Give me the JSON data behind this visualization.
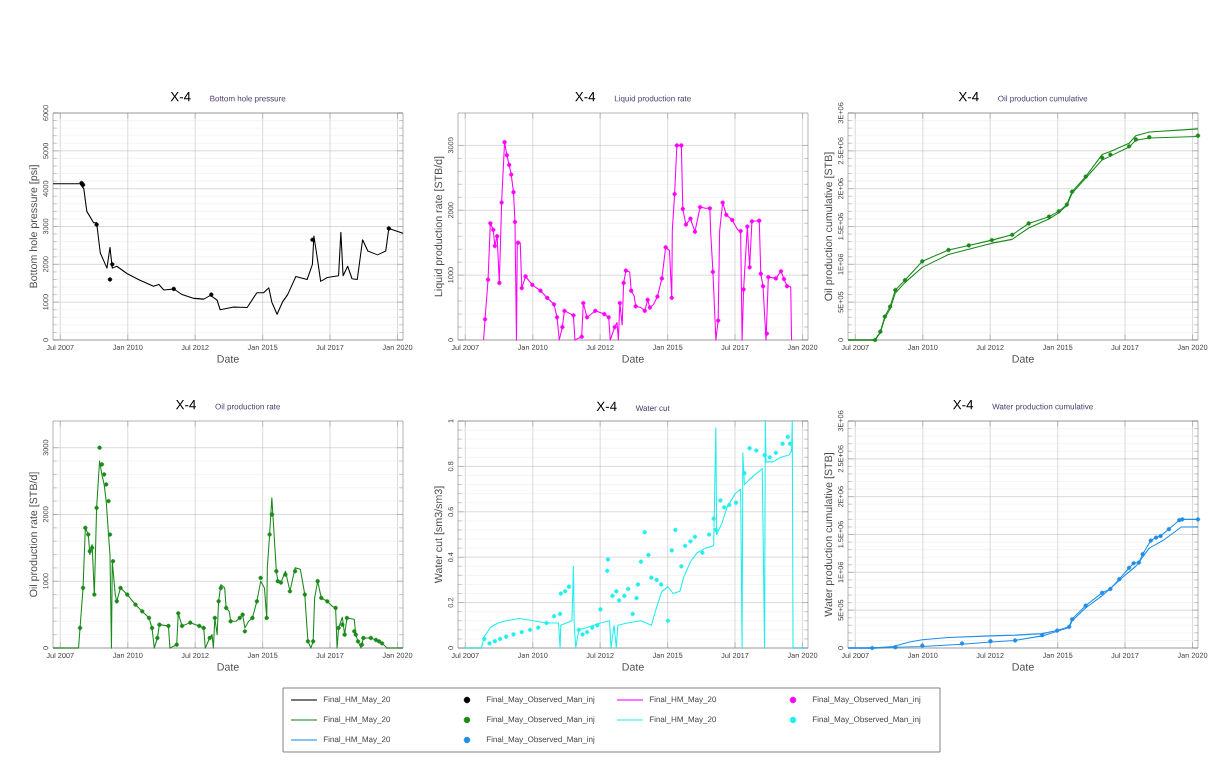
{
  "chart_data": [
    {
      "type": "line",
      "title": "X-4",
      "subtitle": "Bottom hole pressure",
      "xlabel": "Date",
      "ylabel": "Bottom hole pressure [psi]",
      "xlim": [
        "2007-03-25",
        "2020-03-15"
      ],
      "xticks": [
        {
          "value": "2007-07-01",
          "label": "Jul 2007"
        },
        {
          "value": "2010-01-01",
          "label": "Jan 2010"
        },
        {
          "value": "2012-07-01",
          "label": "Jul 2012"
        },
        {
          "value": "2015-01-01",
          "label": "Jan 2015"
        },
        {
          "value": "2017-07-01",
          "label": "Jul 2017"
        },
        {
          "value": "2020-01-01",
          "label": "Jan 2020"
        }
      ],
      "ylim": [
        0,
        6000
      ],
      "yticks": [
        0,
        1000,
        2000,
        3000,
        4000,
        5000,
        6000
      ],
      "grid": true,
      "legend": "bottom",
      "series": [
        {
          "name": "Final_HM_May_20",
          "type": "line",
          "color": "#000000",
          "x": [
            "2007-03-25",
            "2008-03-25",
            "2008-05-15",
            "2008-06-25",
            "2008-09-25",
            "2008-11-05",
            "2008-12-25",
            "2009-03-25",
            "2009-05-05",
            "2009-06-05",
            "2009-08-05",
            "2009-12-25",
            "2010-06-15",
            "2010-12-15",
            "2011-02-25",
            "2011-05-05",
            "2011-09-15",
            "2012-01-05",
            "2012-06-15",
            "2012-10-25",
            "2013-01-25",
            "2013-04-25",
            "2013-06-05",
            "2013-12-05",
            "2014-06-05",
            "2014-10-15",
            "2015-01-15",
            "2015-03-25",
            "2015-05-05",
            "2015-07-15",
            "2015-09-25",
            "2015-12-05",
            "2016-03-25",
            "2016-08-25",
            "2016-11-05",
            "2016-11-25",
            "2017-01-15",
            "2017-02-25",
            "2017-05-25",
            "2017-10-25",
            "2017-11-25",
            "2017-12-25",
            "2018-02-25",
            "2018-04-25",
            "2018-07-05",
            "2018-09-15",
            "2018-11-25",
            "2019-04-05",
            "2019-07-25",
            "2019-09-05",
            "2020-03-15"
          ],
          "values": [
            4130,
            4130,
            4000,
            3400,
            3100,
            3100,
            2300,
            1900,
            2450,
            1900,
            1950,
            1750,
            1580,
            1420,
            1470,
            1320,
            1350,
            1200,
            1100,
            1080,
            1180,
            1050,
            800,
            870,
            860,
            1250,
            1250,
            1380,
            1000,
            680,
            1000,
            1200,
            1680,
            1600,
            2000,
            2750,
            2100,
            1550,
            1650,
            1700,
            2850,
            1700,
            1950,
            1620,
            1600,
            2650,
            2350,
            2250,
            2350,
            2950,
            2820
          ]
        },
        {
          "name": "Final_May_Observed_Man_inj",
          "type": "scatter",
          "marker": "circle",
          "color": "#000000",
          "x": [
            "2008-04-15",
            "2008-05-05",
            "2008-11-05",
            "2009-05-05",
            "2009-06-05",
            "2011-09-15",
            "2013-02-05",
            "2016-11-05",
            "2019-09-05"
          ],
          "values": [
            4150,
            4100,
            3050,
            1600,
            2000,
            1350,
            1200,
            2650,
            2950
          ]
        }
      ]
    },
    {
      "type": "line",
      "title": "X-4",
      "subtitle": "Liquid production rate",
      "xlabel": "Date",
      "ylabel": "Liquid production rate [STB/d]",
      "xlim": [
        "2007-03-25",
        "2020-03-15"
      ],
      "xticks": [
        {
          "value": "2007-07-01",
          "label": "Jul 2007"
        },
        {
          "value": "2010-01-01",
          "label": "Jan 2010"
        },
        {
          "value": "2012-07-01",
          "label": "Jul 2012"
        },
        {
          "value": "2015-01-01",
          "label": "Jan 2015"
        },
        {
          "value": "2017-07-01",
          "label": "Jul 2017"
        },
        {
          "value": "2020-01-01",
          "label": "Jan 2020"
        }
      ],
      "ylim": [
        0,
        3500
      ],
      "yticks": [
        0,
        1000,
        2000,
        3000
      ],
      "grid": true,
      "legend": "bottom",
      "series": [
        {
          "name": "Final_HM_May_20",
          "type": "line",
          "color": "#ff00ff",
          "x": [
            "2008-03-05",
            "2008-03-25",
            "2008-05-05",
            "2008-06-05",
            "2008-07-15",
            "2008-08-05",
            "2008-09-05",
            "2008-10-05",
            "2008-11-05",
            "2008-12-15",
            "2009-01-15",
            "2009-02-15",
            "2009-03-15",
            "2009-04-15",
            "2009-05-05",
            "2009-05-25",
            "2009-06-05",
            "2009-07-15",
            "2009-08-05",
            "2009-09-25",
            "2009-12-25",
            "2010-04-15",
            "2010-07-15",
            "2010-10-15",
            "2010-11-25",
            "2010-12-25",
            "2011-02-05",
            "2011-03-05",
            "2011-07-05",
            "2011-07-25",
            "2011-10-25",
            "2011-11-15",
            "2012-01-05",
            "2012-04-25",
            "2012-08-25",
            "2012-10-25",
            "2012-11-15",
            "2013-01-15",
            "2013-02-15",
            "2013-03-05",
            "2013-03-25",
            "2013-04-25",
            "2013-05-15",
            "2013-06-15",
            "2013-08-05",
            "2013-08-25",
            "2013-10-05",
            "2013-10-25",
            "2014-01-05",
            "2014-02-25",
            "2014-04-05",
            "2014-05-05",
            "2014-06-25",
            "2014-08-15",
            "2014-10-15",
            "2014-12-05",
            "2015-01-25",
            "2015-02-25",
            "2015-03-05",
            "2015-04-05",
            "2015-05-05",
            "2015-07-05",
            "2015-07-25",
            "2015-09-05",
            "2015-11-05",
            "2016-01-05",
            "2016-03-15",
            "2016-05-25",
            "2016-07-25",
            "2016-08-05",
            "2016-09-05",
            "2016-10-15",
            "2016-11-15",
            "2016-12-05",
            "2017-01-15",
            "2017-03-05",
            "2017-05-25",
            "2017-08-05",
            "2017-09-15",
            "2017-10-05",
            "2017-10-25",
            "2017-12-15",
            "2018-01-15",
            "2018-02-15",
            "2018-05-25",
            "2018-06-15",
            "2018-07-15",
            "2018-08-25",
            "2018-09-25",
            "2019-01-05",
            "2019-03-15",
            "2019-04-25",
            "2019-06-05",
            "2019-07-25",
            "2019-08-05"
          ],
          "values": [
            0,
            320,
            930,
            1800,
            1700,
            1450,
            1600,
            880,
            2120,
            3050,
            2850,
            2700,
            2550,
            2280,
            1820,
            0,
            1500,
            1500,
            800,
            980,
            850,
            760,
            650,
            550,
            350,
            0,
            200,
            450,
            380,
            0,
            50,
            570,
            350,
            450,
            400,
            350,
            0,
            200,
            270,
            0,
            570,
            230,
            880,
            1070,
            1050,
            760,
            680,
            520,
            500,
            450,
            620,
            500,
            550,
            670,
            950,
            1430,
            1380,
            650,
            1700,
            2250,
            3000,
            3000,
            2020,
            1780,
            1870,
            1670,
            2050,
            2030,
            2030,
            1670,
            1050,
            0,
            300,
            1680,
            2120,
            1930,
            1850,
            1700,
            1680,
            0,
            780,
            1750,
            1120,
            1830,
            1840,
            1020,
            830,
            0,
            970,
            950,
            1060,
            940,
            830,
            820,
            0
          ]
        },
        {
          "name": "Final_May_Observed_Man_inj",
          "type": "scatter",
          "marker": "circle",
          "color": "#ff00ff",
          "x": [
            "2008-03-25",
            "2008-05-05",
            "2008-06-05",
            "2008-07-15",
            "2008-08-05",
            "2008-09-05",
            "2008-10-05",
            "2008-11-05",
            "2008-12-15",
            "2009-01-15",
            "2009-02-15",
            "2009-03-15",
            "2009-04-15",
            "2009-05-05",
            "2009-06-15",
            "2009-08-05",
            "2009-09-25",
            "2009-12-25",
            "2010-04-15",
            "2010-07-15",
            "2010-10-15",
            "2010-11-25",
            "2011-02-05",
            "2011-03-05",
            "2011-07-05",
            "2011-10-25",
            "2011-11-15",
            "2012-01-05",
            "2012-04-25",
            "2012-08-25",
            "2012-10-25",
            "2013-01-15",
            "2013-03-25",
            "2013-05-15",
            "2013-06-15",
            "2013-08-25",
            "2013-10-25",
            "2014-02-25",
            "2014-04-05",
            "2014-05-05",
            "2014-08-15",
            "2014-10-15",
            "2014-12-05",
            "2015-02-25",
            "2015-04-05",
            "2015-05-05",
            "2015-07-05",
            "2015-07-25",
            "2015-09-05",
            "2015-11-05",
            "2016-01-05",
            "2016-03-15",
            "2016-07-25",
            "2016-09-05",
            "2016-11-15",
            "2017-01-15",
            "2017-03-05",
            "2017-05-25",
            "2017-09-15",
            "2017-10-25",
            "2017-12-15",
            "2018-01-15",
            "2018-02-15",
            "2018-05-25",
            "2018-06-15",
            "2018-07-15",
            "2018-09-05",
            "2018-09-25",
            "2019-01-05",
            "2019-03-15",
            "2019-04-25",
            "2019-06-05"
          ],
          "values": [
            320,
            930,
            1800,
            1700,
            1450,
            1600,
            880,
            2120,
            3050,
            2850,
            2700,
            2550,
            2280,
            1820,
            1500,
            800,
            980,
            850,
            760,
            650,
            550,
            350,
            200,
            450,
            380,
            50,
            570,
            350,
            450,
            400,
            350,
            200,
            570,
            880,
            1070,
            760,
            520,
            450,
            620,
            500,
            670,
            950,
            1430,
            650,
            2250,
            3000,
            3000,
            2020,
            1780,
            1870,
            1670,
            2050,
            2030,
            1050,
            300,
            2120,
            1930,
            1850,
            1680,
            780,
            1750,
            1120,
            1830,
            1840,
            1020,
            830,
            100,
            970,
            950,
            1060,
            940,
            830
          ]
        }
      ]
    },
    {
      "type": "line",
      "title": "X-4",
      "subtitle": "Oil production cumulative",
      "xlabel": "Date",
      "ylabel": "Oil production cumulative [STB]",
      "xlim": [
        "2007-03-25",
        "2020-03-15"
      ],
      "xticks": [
        {
          "value": "2007-07-01",
          "label": "Jul 2007"
        },
        {
          "value": "2010-01-01",
          "label": "Jan 2010"
        },
        {
          "value": "2012-07-01",
          "label": "Jul 2012"
        },
        {
          "value": "2015-01-01",
          "label": "Jan 2015"
        },
        {
          "value": "2017-07-01",
          "label": "Jul 2017"
        },
        {
          "value": "2020-01-01",
          "label": "Jan 2020"
        }
      ],
      "ylim": [
        0,
        3000000
      ],
      "yticks": [
        0,
        {
          "value": 500000,
          "label": "5E+05"
        },
        {
          "value": 1000000,
          "label": "1E+06"
        },
        {
          "value": 1500000,
          "label": "1.5E+06"
        },
        {
          "value": 2000000,
          "label": "2E+06"
        },
        {
          "value": 2500000,
          "label": "2.5E+06"
        },
        {
          "value": 3000000,
          "label": "3E+06"
        }
      ],
      "grid": true,
      "legend": "bottom",
      "series": [
        {
          "name": "Final_HM_May_20",
          "type": "line",
          "color": "#1a8a1a",
          "x": [
            "2007-03-25",
            "2008-03-25",
            "2008-06-05",
            "2008-08-05",
            "2008-10-15",
            "2008-12-25",
            "2009-05-05",
            "2009-12-25",
            "2010-12-15",
            "2011-09-15",
            "2012-07-25",
            "2013-04-25",
            "2013-12-05",
            "2014-09-05",
            "2015-01-15",
            "2015-05-05",
            "2015-07-15",
            "2016-01-15",
            "2016-08-25",
            "2016-12-15",
            "2017-08-25",
            "2017-11-25",
            "2018-05-25",
            "2020-03-15"
          ],
          "values": [
            0,
            0,
            110000,
            310000,
            440000,
            660000,
            790000,
            1040000,
            1190000,
            1250000,
            1320000,
            1390000,
            1540000,
            1630000,
            1700000,
            1790000,
            1960000,
            2160000,
            2450000,
            2490000,
            2600000,
            2700000,
            2750000,
            2790000
          ]
        },
        {
          "type": "line",
          "color": "#1a8a1a",
          "x": [
            "2007-03-25",
            "2008-03-25",
            "2008-06-05",
            "2008-08-05",
            "2008-10-15",
            "2008-12-25",
            "2009-05-05",
            "2009-12-25",
            "2010-12-15",
            "2011-09-15",
            "2012-07-25",
            "2013-04-25",
            "2013-12-05",
            "2014-09-05",
            "2015-01-15",
            "2015-05-05",
            "2015-07-15",
            "2016-01-15",
            "2016-08-25",
            "2016-12-15",
            "2017-08-25",
            "2017-11-25",
            "2018-05-25",
            "2020-03-15"
          ],
          "values": [
            0,
            0,
            100000,
            290000,
            410000,
            620000,
            760000,
            960000,
            1130000,
            1200000,
            1280000,
            1330000,
            1480000,
            1600000,
            1680000,
            1780000,
            1940000,
            2140000,
            2380000,
            2430000,
            2550000,
            2640000,
            2670000,
            2690000
          ]
        },
        {
          "name": "Final_May_Observed_Man_inj",
          "type": "scatter",
          "marker": "circle",
          "color": "#1a8a1a",
          "x": [
            "2008-03-25",
            "2008-06-05",
            "2008-08-05",
            "2008-10-15",
            "2008-12-25",
            "2009-05-05",
            "2009-12-25",
            "2010-12-15",
            "2011-09-15",
            "2012-07-25",
            "2013-04-25",
            "2013-12-05",
            "2014-09-05",
            "2015-01-15",
            "2015-05-05",
            "2015-07-15",
            "2016-01-15",
            "2016-08-25",
            "2016-12-15",
            "2017-08-25",
            "2017-11-25",
            "2018-05-25",
            "2020-03-15"
          ],
          "values": [
            0,
            110000,
            310000,
            440000,
            660000,
            790000,
            1040000,
            1190000,
            1250000,
            1320000,
            1390000,
            1540000,
            1630000,
            1700000,
            1790000,
            1960000,
            2160000,
            2410000,
            2450000,
            2560000,
            2650000,
            2680000,
            2700000
          ]
        }
      ]
    },
    {
      "type": "line",
      "title": "X-4",
      "subtitle": "Oil production rate",
      "xlabel": "Date",
      "ylabel": "Oil production rate [STB/d]",
      "xlim": [
        "2007-03-25",
        "2020-03-15"
      ],
      "xticks": [
        {
          "value": "2007-07-01",
          "label": "Jul 2007"
        },
        {
          "value": "2010-01-01",
          "label": "Jan 2010"
        },
        {
          "value": "2012-07-01",
          "label": "Jul 2012"
        },
        {
          "value": "2015-01-01",
          "label": "Jan 2015"
        },
        {
          "value": "2017-07-01",
          "label": "Jul 2017"
        },
        {
          "value": "2020-01-01",
          "label": "Jan 2020"
        }
      ],
      "ylim": [
        0,
        3400
      ],
      "yticks": [
        0,
        1000,
        2000,
        3000
      ],
      "grid": true,
      "series": [
        {
          "type": "line",
          "color": "#1a8a1a",
          "x": [
            "2007-03-25",
            "2008-03-05",
            "2008-03-25",
            "2008-05-05",
            "2008-06-05",
            "2008-07-15",
            "2008-08-05",
            "2008-09-05",
            "2008-10-05",
            "2008-11-05",
            "2008-12-15",
            "2009-01-15",
            "2009-02-15",
            "2009-03-15",
            "2009-04-15",
            "2009-05-05",
            "2009-05-25",
            "2009-06-05",
            "2009-07-15",
            "2009-08-05",
            "2009-09-25",
            "2009-12-25",
            "2010-04-15",
            "2010-07-15",
            "2010-10-15",
            "2010-11-25",
            "2010-12-25",
            "2011-02-05",
            "2011-03-05",
            "2011-07-05",
            "2011-07-25",
            "2011-10-25",
            "2011-11-15",
            "2012-01-05",
            "2012-04-25",
            "2012-08-25",
            "2012-10-25",
            "2012-11-15",
            "2013-01-15",
            "2013-02-15",
            "2013-03-05",
            "2013-03-25",
            "2013-04-25",
            "2013-05-15",
            "2013-06-15",
            "2013-08-05",
            "2013-08-25",
            "2013-10-05",
            "2013-10-25",
            "2014-01-05",
            "2014-02-25",
            "2014-04-05",
            "2014-05-05",
            "2014-06-25",
            "2014-08-15",
            "2014-10-15",
            "2014-12-05",
            "2015-01-25",
            "2015-02-25",
            "2015-03-05",
            "2015-04-05",
            "2015-05-05",
            "2015-07-05",
            "2015-07-25",
            "2015-09-05",
            "2015-11-05",
            "2016-01-05",
            "2016-03-15",
            "2016-05-25",
            "2016-07-25",
            "2016-08-05",
            "2016-09-05",
            "2016-10-15",
            "2016-11-15",
            "2016-12-05",
            "2017-01-15",
            "2017-03-05",
            "2017-05-25",
            "2017-08-05",
            "2017-09-15",
            "2017-10-05",
            "2017-10-25",
            "2017-12-15",
            "2018-01-15",
            "2018-02-15",
            "2018-05-25",
            "2018-06-15",
            "2018-07-15",
            "2018-08-25",
            "2018-09-25",
            "2019-01-05",
            "2019-03-15",
            "2019-04-25",
            "2019-06-05",
            "2019-07-25",
            "2019-08-05",
            "2020-03-15"
          ],
          "values": [
            0,
            0,
            300,
            900,
            1800,
            1700,
            1400,
            1550,
            800,
            2100,
            2800,
            2600,
            2450,
            2200,
            1700,
            1400,
            0,
            1300,
            800,
            700,
            900,
            800,
            650,
            550,
            450,
            300,
            0,
            150,
            350,
            330,
            0,
            50,
            520,
            330,
            380,
            330,
            300,
            0,
            150,
            200,
            0,
            450,
            200,
            700,
            950,
            900,
            600,
            550,
            400,
            400,
            450,
            500,
            300,
            400,
            450,
            700,
            1000,
            900,
            450,
            1200,
            1700,
            2250,
            1150,
            1000,
            980,
            1150,
            850,
            1200,
            1180,
            800,
            600,
            100,
            0,
            100,
            750,
            1000,
            750,
            700,
            620,
            600,
            0,
            300,
            460,
            200,
            450,
            430,
            200,
            100,
            0,
            150,
            150,
            120,
            100,
            70,
            20,
            0,
            0
          ]
        },
        {
          "type": "scatter",
          "marker": "circle",
          "color": "#1a8a1a",
          "x": [
            "2008-03-25",
            "2008-05-05",
            "2008-06-05",
            "2008-07-15",
            "2008-08-05",
            "2008-09-05",
            "2008-10-05",
            "2008-11-05",
            "2008-12-15",
            "2009-01-15",
            "2009-02-15",
            "2009-03-15",
            "2009-04-15",
            "2009-05-05",
            "2009-06-15",
            "2009-08-05",
            "2009-09-25",
            "2009-12-25",
            "2010-04-15",
            "2010-07-15",
            "2010-10-15",
            "2010-11-25",
            "2011-02-05",
            "2011-03-05",
            "2011-07-05",
            "2011-10-25",
            "2011-11-15",
            "2012-01-05",
            "2012-04-25",
            "2012-08-25",
            "2012-10-25",
            "2013-01-15",
            "2013-03-25",
            "2013-05-15",
            "2013-06-15",
            "2013-08-25",
            "2013-10-25",
            "2014-02-25",
            "2014-04-05",
            "2014-05-05",
            "2014-08-15",
            "2014-10-15",
            "2014-12-05",
            "2015-02-25",
            "2015-04-05",
            "2015-05-05",
            "2015-07-05",
            "2015-07-25",
            "2015-09-05",
            "2015-11-05",
            "2016-01-05",
            "2016-03-15",
            "2016-07-25",
            "2016-09-05",
            "2016-11-15",
            "2017-01-15",
            "2017-03-05",
            "2017-05-25",
            "2017-09-15",
            "2017-10-25",
            "2017-12-15",
            "2018-01-15",
            "2018-02-15",
            "2018-05-25",
            "2018-06-15",
            "2018-07-15",
            "2018-09-05",
            "2018-09-25",
            "2019-01-05",
            "2019-03-15",
            "2019-04-25",
            "2019-06-05"
          ],
          "values": [
            300,
            900,
            1800,
            1700,
            1450,
            1500,
            800,
            2100,
            3000,
            2750,
            2600,
            2450,
            2200,
            1700,
            1300,
            700,
            900,
            800,
            650,
            550,
            450,
            300,
            150,
            350,
            330,
            50,
            520,
            330,
            380,
            330,
            300,
            150,
            450,
            700,
            900,
            600,
            400,
            450,
            500,
            250,
            450,
            700,
            1050,
            450,
            1700,
            2000,
            1150,
            1000,
            980,
            1100,
            850,
            1150,
            800,
            100,
            100,
            1000,
            750,
            700,
            600,
            300,
            350,
            200,
            450,
            250,
            200,
            100,
            50,
            150,
            150,
            120,
            100,
            70
          ]
        }
      ]
    },
    {
      "type": "line",
      "title": "X-4",
      "subtitle": "Water cut",
      "xlabel": "Date",
      "ylabel": "Water cut [sm3/sm3]",
      "xlim": [
        "2007-03-25",
        "2020-03-15"
      ],
      "xticks": [
        {
          "value": "2007-07-01",
          "label": "Jul 2007"
        },
        {
          "value": "2010-01-01",
          "label": "Jan 2010"
        },
        {
          "value": "2012-07-01",
          "label": "Jul 2012"
        },
        {
          "value": "2015-01-01",
          "label": "Jan 2015"
        },
        {
          "value": "2017-07-01",
          "label": "Jul 2017"
        },
        {
          "value": "2020-01-01",
          "label": "Jan 2020"
        }
      ],
      "ylim": [
        0,
        1
      ],
      "yticks": [
        0,
        0.2,
        0.4,
        0.6,
        0.8,
        1
      ],
      "grid": true,
      "legend": "bottom",
      "series": [
        {
          "name": "Final_HM_May_20",
          "type": "line",
          "color": "#22eeee",
          "x": [
            "2007-06-15",
            "2008-02-05",
            "2008-03-15",
            "2008-06-05",
            "2008-09-15",
            "2009-01-05",
            "2009-07-05",
            "2010-01-05",
            "2010-07-05",
            "2010-12-15",
            "2011-01-05",
            "2011-01-15",
            "2011-06-15",
            "2011-07-05",
            "2011-07-15",
            "2011-08-05",
            "2011-09-15",
            "2012-01-05",
            "2012-07-05",
            "2012-11-05",
            "2012-11-25",
            "2013-01-05",
            "2013-02-05",
            "2013-02-25",
            "2013-07-05",
            "2014-01-05",
            "2014-05-25",
            "2014-08-05",
            "2014-10-15",
            "2015-01-05",
            "2015-03-15",
            "2015-06-15",
            "2015-08-05",
            "2015-11-05",
            "2016-02-05",
            "2016-05-25",
            "2016-09-15",
            "2016-10-15",
            "2016-10-25",
            "2017-01-05",
            "2017-03-15",
            "2017-07-05",
            "2017-09-15",
            "2017-10-05",
            "2017-10-15",
            "2017-11-05",
            "2018-01-05",
            "2018-03-15",
            "2018-07-05",
            "2018-08-05",
            "2018-08-15",
            "2018-08-25",
            "2018-11-25",
            "2019-03-15",
            "2019-07-05",
            "2019-08-05",
            "2019-08-15",
            "2019-08-25",
            "2020-02-01"
          ],
          "values": [
            0,
            0,
            0.05,
            0.09,
            0.11,
            0.12,
            0.13,
            0.12,
            0.11,
            0.11,
            0,
            0.1,
            0.12,
            0.36,
            0.11,
            0,
            0.08,
            0.09,
            0.11,
            0.12,
            0,
            0.1,
            0,
            0.1,
            0.11,
            0.12,
            0.1,
            0.18,
            0.25,
            0.27,
            0.24,
            0.25,
            0.31,
            0.38,
            0.42,
            0.44,
            0.45,
            0.97,
            0.5,
            0.55,
            0.62,
            0.68,
            0.7,
            0,
            0.86,
            0.72,
            0.74,
            0.76,
            0.79,
            0,
            1.0,
            0.82,
            0.82,
            0.84,
            0.85,
            0.87,
            1.0,
            0,
            0
          ]
        },
        {
          "name": "Final_May_Observed_Man_inj",
          "type": "scatter",
          "marker": "circle",
          "color": "#22eeee",
          "x": [
            "2008-03-15",
            "2008-05-25",
            "2008-08-05",
            "2008-10-15",
            "2009-01-05",
            "2009-04-15",
            "2009-08-05",
            "2009-11-25",
            "2010-03-15",
            "2010-07-05",
            "2010-10-15",
            "2011-01-05",
            "2011-01-15",
            "2011-03-15",
            "2011-05-05",
            "2011-09-15",
            "2011-11-05",
            "2012-01-05",
            "2012-03-15",
            "2012-05-25",
            "2012-07-05",
            "2012-10-05",
            "2012-10-15",
            "2012-12-15",
            "2013-02-05",
            "2013-03-15",
            "2013-05-25",
            "2013-07-15",
            "2013-09-15",
            "2013-11-05",
            "2013-11-25",
            "2014-01-05",
            "2014-02-25",
            "2014-04-15",
            "2014-05-25",
            "2014-08-05",
            "2014-10-05",
            "2015-01-05",
            "2015-02-25",
            "2015-04-15",
            "2015-07-05",
            "2015-08-25",
            "2015-11-05",
            "2016-01-05",
            "2016-04-15",
            "2016-07-15",
            "2016-09-15",
            "2016-10-15",
            "2016-12-15",
            "2017-02-05",
            "2017-04-15",
            "2017-07-15",
            "2017-11-05",
            "2018-01-15",
            "2018-04-15",
            "2018-08-05",
            "2018-10-15",
            "2019-01-05",
            "2019-04-05",
            "2019-06-15",
            "2019-07-15"
          ],
          "values": [
            0.04,
            0.02,
            0.03,
            0.04,
            0.05,
            0.06,
            0.07,
            0.08,
            0.09,
            0.11,
            0.14,
            0.15,
            0.24,
            0.25,
            0.27,
            0.08,
            0.06,
            0.07,
            0.09,
            0.1,
            0.17,
            0.34,
            0.39,
            0.23,
            0.25,
            0.21,
            0.23,
            0.26,
            0.15,
            0.22,
            0.28,
            0.38,
            0.51,
            0.41,
            0.31,
            0.3,
            0.28,
            0.12,
            0.43,
            0.52,
            0.36,
            0.45,
            0.47,
            0.49,
            0.42,
            0.5,
            0.57,
            0.52,
            0.65,
            0.62,
            0.63,
            0.64,
            0.77,
            0.88,
            0.87,
            0.85,
            0.84,
            0.86,
            0.9,
            0.93,
            0.9
          ]
        }
      ]
    },
    {
      "type": "line",
      "title": "X-4",
      "subtitle": "Water production cumulative",
      "xlabel": "Date",
      "ylabel": "Water production cumulative [STB]",
      "xlim": [
        "2007-03-25",
        "2020-03-15"
      ],
      "xticks": [
        {
          "value": "2007-07-01",
          "label": "Jul 2007"
        },
        {
          "value": "2010-01-01",
          "label": "Jan 2010"
        },
        {
          "value": "2012-07-01",
          "label": "Jul 2012"
        },
        {
          "value": "2015-01-01",
          "label": "Jan 2015"
        },
        {
          "value": "2017-07-01",
          "label": "Jul 2017"
        },
        {
          "value": "2020-01-01",
          "label": "Jan 2020"
        }
      ],
      "ylim": [
        0,
        3000000
      ],
      "yticks": [
        0,
        {
          "value": 500000,
          "label": "5E+05"
        },
        {
          "value": 1000000,
          "label": "1E+06"
        },
        {
          "value": 1500000,
          "label": "1.5E+06"
        },
        {
          "value": 2000000,
          "label": "2E+06"
        },
        {
          "value": 2500000,
          "label": "2.5E+06"
        },
        {
          "value": 3000000,
          "label": "3E+06"
        }
      ],
      "grid": true,
      "legend": "bottom",
      "series": [
        {
          "name": "Final_HM_May_20",
          "type": "line",
          "color": "#1e8ee8",
          "x": [
            "2007-03-25",
            "2008-02-15",
            "2008-11-25",
            "2009-07-05",
            "2009-12-25",
            "2010-12-15",
            "2012-07-05",
            "2013-06-05",
            "2014-06-05",
            "2014-12-25",
            "2015-06-05",
            "2015-07-15",
            "2016-01-15",
            "2016-08-25",
            "2016-12-15",
            "2017-04-15",
            "2017-08-25",
            "2017-10-25",
            "2018-01-05",
            "2018-02-25",
            "2018-06-15",
            "2018-08-25",
            "2018-10-25",
            "2019-02-15",
            "2019-07-05",
            "2019-08-15",
            "2020-03-15"
          ],
          "values": [
            0,
            0,
            20000,
            80000,
            110000,
            140000,
            160000,
            170000,
            190000,
            230000,
            280000,
            380000,
            560000,
            730000,
            780000,
            910000,
            1060000,
            1120000,
            1130000,
            1240000,
            1420000,
            1460000,
            1480000,
            1570000,
            1690000,
            1700000,
            1700000
          ]
        },
        {
          "type": "line",
          "color": "#1e8ee8",
          "x": [
            "2007-03-25",
            "2008-02-15",
            "2009-12-25",
            "2011-06-15",
            "2012-07-05",
            "2013-06-05",
            "2014-06-05",
            "2014-12-25",
            "2015-06-05",
            "2015-07-15",
            "2016-01-15",
            "2016-08-25",
            "2017-05-25",
            "2017-11-25",
            "2018-05-25",
            "2018-11-25",
            "2019-08-05",
            "2020-03-15"
          ],
          "values": [
            0,
            0,
            20000,
            50000,
            80000,
            100000,
            160000,
            220000,
            270000,
            360000,
            530000,
            690000,
            930000,
            1080000,
            1320000,
            1420000,
            1600000,
            1600000
          ]
        },
        {
          "name": "Final_May_Observed_Man_inj",
          "type": "scatter",
          "marker": "circle",
          "color": "#1e8ee8",
          "x": [
            "2008-02-15",
            "2008-12-25",
            "2009-12-25",
            "2011-06-15",
            "2012-07-05",
            "2013-06-05",
            "2014-06-05",
            "2014-12-25",
            "2015-06-05",
            "2015-07-15",
            "2016-01-15",
            "2016-08-25",
            "2016-12-15",
            "2017-04-15",
            "2017-08-25",
            "2017-10-25",
            "2018-01-05",
            "2018-02-25",
            "2018-06-15",
            "2018-08-25",
            "2018-10-25",
            "2019-02-15",
            "2019-07-05",
            "2019-08-15",
            "2020-03-15"
          ],
          "values": [
            0,
            10000,
            30000,
            60000,
            90000,
            100000,
            170000,
            230000,
            280000,
            380000,
            560000,
            730000,
            780000,
            910000,
            1060000,
            1120000,
            1130000,
            1240000,
            1420000,
            1460000,
            1480000,
            1570000,
            1690000,
            1700000,
            1700000
          ]
        }
      ]
    }
  ]
}
